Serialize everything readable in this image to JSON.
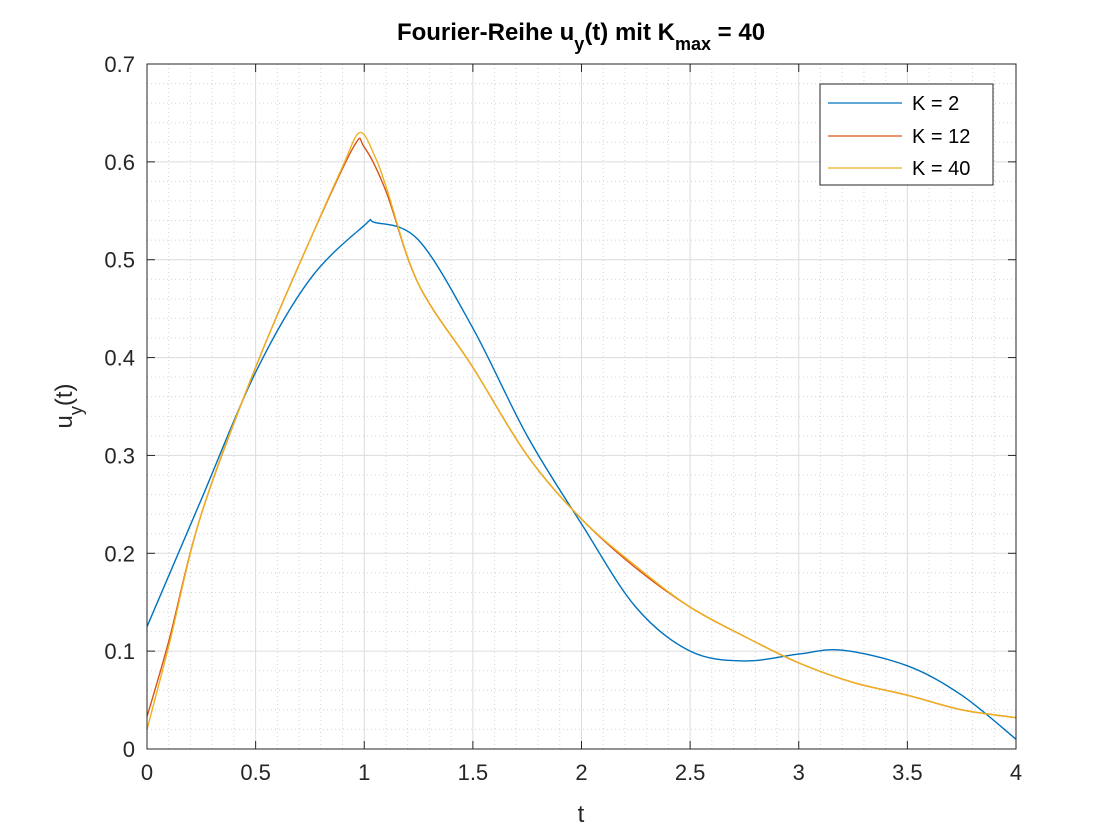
{
  "chart_data": {
    "type": "line",
    "title": {
      "prefix": "Fourier-Reihe u",
      "prefix_sub": "y",
      "middle": "(t) mit K",
      "middle_sub": "max",
      "suffix": " = 40"
    },
    "xlabel": "t",
    "ylabel": {
      "main": "u",
      "sub": "y",
      "tail": "(t)"
    },
    "xlim": [
      0,
      4
    ],
    "ylim": [
      0,
      0.7
    ],
    "xticks": [
      0,
      0.5,
      1,
      1.5,
      2,
      2.5,
      3,
      3.5,
      4
    ],
    "xtick_labels": [
      "0",
      "0.5",
      "1",
      "1.5",
      "2",
      "2.5",
      "3",
      "3.5",
      "4"
    ],
    "yticks": [
      0,
      0.1,
      0.2,
      0.3,
      0.4,
      0.5,
      0.6,
      0.7
    ],
    "ytick_labels": [
      "0",
      "0.1",
      "0.2",
      "0.3",
      "0.4",
      "0.5",
      "0.6",
      "0.7"
    ],
    "grid": true,
    "minor_grid": true,
    "legend_position": "top-right",
    "series": [
      {
        "name": "K = 2",
        "color": "#0072BD",
        "x": [
          0,
          0.25,
          0.5,
          0.75,
          1,
          1.05,
          1.25,
          1.5,
          1.75,
          2,
          2.25,
          2.5,
          2.75,
          3,
          3.2,
          3.5,
          3.75,
          4
        ],
        "y": [
          0.125,
          0.255,
          0.385,
          0.48,
          0.535,
          0.538,
          0.52,
          0.43,
          0.32,
          0.23,
          0.145,
          0.1,
          0.09,
          0.097,
          0.101,
          0.085,
          0.055,
          0.01
        ]
      },
      {
        "name": "K = 12",
        "color": "#D95319",
        "x": [
          0,
          0.1,
          0.25,
          0.5,
          0.75,
          0.95,
          1,
          1.1,
          1.25,
          1.5,
          1.75,
          2,
          2.25,
          2.5,
          2.75,
          3,
          3.25,
          3.5,
          3.75,
          4
        ],
        "y": [
          0.033,
          0.11,
          0.24,
          0.39,
          0.52,
          0.615,
          0.615,
          0.57,
          0.475,
          0.39,
          0.3,
          0.235,
          0.185,
          0.145,
          0.115,
          0.088,
          0.068,
          0.055,
          0.04,
          0.032
        ]
      },
      {
        "name": "K = 40",
        "color": "#EDB120",
        "x": [
          0,
          0.1,
          0.25,
          0.5,
          0.75,
          0.9,
          0.98,
          1.05,
          1.1,
          1.25,
          1.5,
          1.75,
          2,
          2.25,
          2.5,
          2.75,
          3,
          3.25,
          3.5,
          3.75,
          4
        ],
        "y": [
          0.02,
          0.105,
          0.24,
          0.39,
          0.52,
          0.595,
          0.63,
          0.605,
          0.575,
          0.475,
          0.39,
          0.3,
          0.235,
          0.187,
          0.145,
          0.115,
          0.088,
          0.068,
          0.055,
          0.04,
          0.032
        ]
      }
    ]
  }
}
